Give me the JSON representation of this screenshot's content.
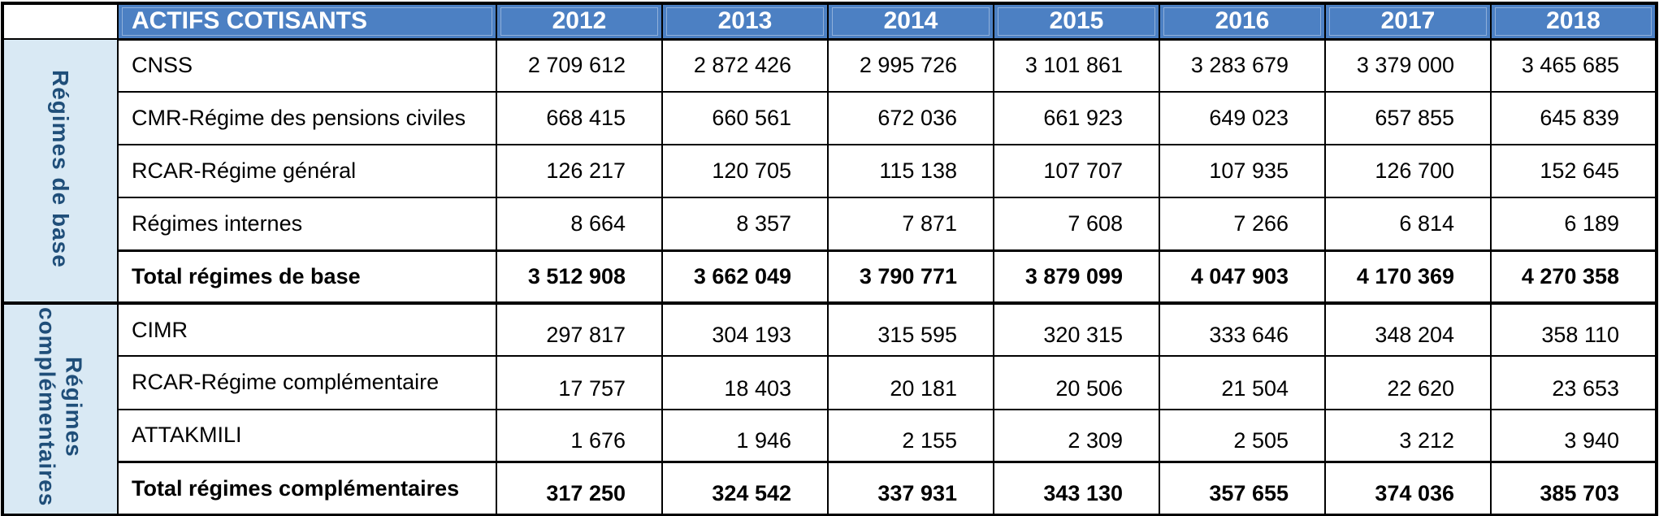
{
  "chart_data": {
    "type": "table",
    "title": "ACTIFS COTISANTS",
    "columns": [
      "2012",
      "2013",
      "2014",
      "2015",
      "2016",
      "2017",
      "2018"
    ],
    "number_format": "space-separated thousands (fr)",
    "row_groups": [
      {
        "group": "Régimes de base",
        "rows": [
          {
            "label": "CNSS",
            "is_total": false,
            "values": [
              2709612,
              2872426,
              2995726,
              3101861,
              3283679,
              3379000,
              3465685
            ]
          },
          {
            "label": "CMR-Régime des pensions civiles",
            "is_total": false,
            "values": [
              668415,
              660561,
              672036,
              661923,
              649023,
              657855,
              645839
            ]
          },
          {
            "label": "RCAR-Régime général",
            "is_total": false,
            "values": [
              126217,
              120705,
              115138,
              107707,
              107935,
              126700,
              152645
            ]
          },
          {
            "label": "Régimes internes",
            "is_total": false,
            "values": [
              8664,
              8357,
              7871,
              7608,
              7266,
              6814,
              6189
            ]
          },
          {
            "label": "Total régimes de base",
            "is_total": true,
            "values": [
              3512908,
              3662049,
              3790771,
              3879099,
              4047903,
              4170369,
              4270358
            ]
          }
        ]
      },
      {
        "group": "Régimes complémentaires",
        "rows": [
          {
            "label": "CIMR",
            "is_total": false,
            "values": [
              297817,
              304193,
              315595,
              320315,
              333646,
              348204,
              358110
            ]
          },
          {
            "label": "RCAR-Régime complémentaire",
            "is_total": false,
            "values": [
              17757,
              18403,
              20181,
              20506,
              21504,
              22620,
              23653
            ]
          },
          {
            "label": "ATTAKMILI",
            "is_total": false,
            "values": [
              1676,
              1946,
              2155,
              2309,
              2505,
              3212,
              3940
            ]
          },
          {
            "label": "Total régimes complémentaires",
            "is_total": true,
            "values": [
              317250,
              324542,
              337931,
              343130,
              357655,
              374036,
              385703
            ]
          }
        ]
      }
    ]
  },
  "colors": {
    "header_bg": "#4c80c3",
    "header_text": "#ffffff",
    "band_bg": "#d9e9f4",
    "band_text": "#1f4e79",
    "grid": "#000000"
  }
}
